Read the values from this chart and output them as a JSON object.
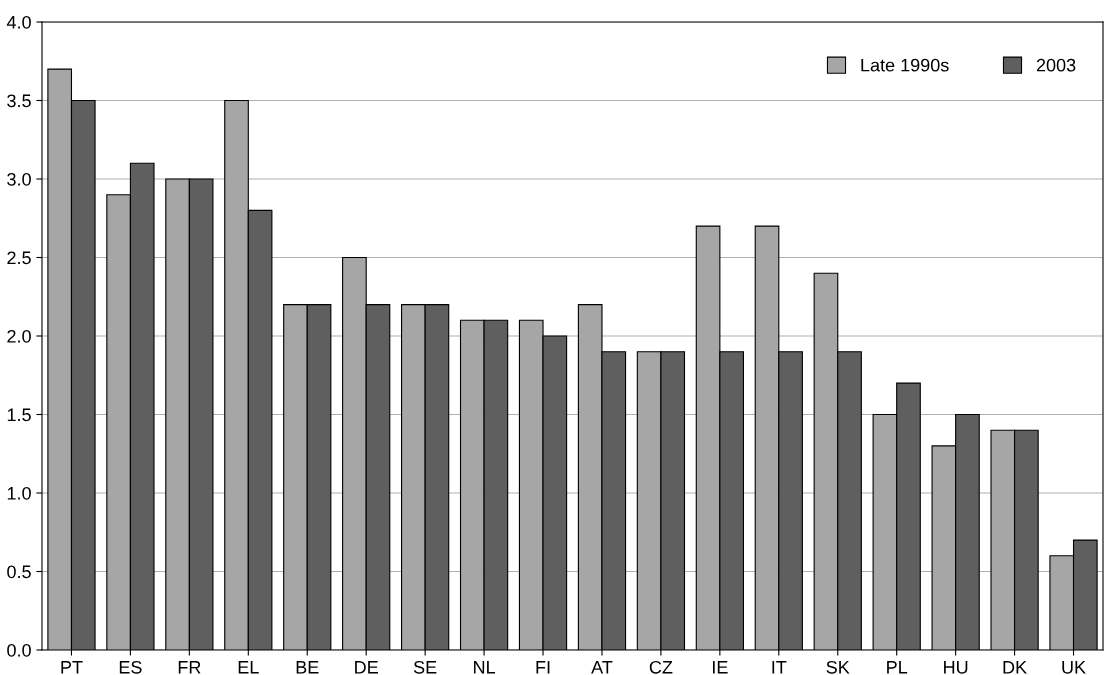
{
  "chart_data": {
    "type": "bar",
    "categories": [
      "PT",
      "ES",
      "FR",
      "EL",
      "BE",
      "DE",
      "SE",
      "NL",
      "FI",
      "AT",
      "CZ",
      "IE",
      "IT",
      "SK",
      "PL",
      "HU",
      "DK",
      "UK"
    ],
    "series": [
      {
        "name": "Late 1990s",
        "color": "#a6a6a6",
        "values": [
          3.7,
          2.9,
          3.0,
          3.5,
          2.2,
          2.5,
          2.2,
          2.1,
          2.1,
          2.2,
          1.9,
          2.7,
          2.7,
          2.4,
          1.5,
          1.3,
          1.4,
          0.6
        ]
      },
      {
        "name": "2003",
        "color": "#5f5f5f",
        "values": [
          3.5,
          3.1,
          3.0,
          2.8,
          2.2,
          2.2,
          2.2,
          2.1,
          2.0,
          1.9,
          1.9,
          1.9,
          1.9,
          1.9,
          1.7,
          1.5,
          1.4,
          0.7
        ]
      }
    ],
    "ylim": [
      0,
      4
    ],
    "yticks": [
      {
        "value": 0,
        "label": "0.0"
      },
      {
        "value": 0.5,
        "label": "0.5"
      },
      {
        "value": 1,
        "label": "1.0"
      },
      {
        "value": 1.5,
        "label": "1.5"
      },
      {
        "value": 2,
        "label": "2.0"
      },
      {
        "value": 2.5,
        "label": "2.5"
      },
      {
        "value": 3,
        "label": "3.0"
      },
      {
        "value": 3.5,
        "label": "3.5"
      },
      {
        "value": 4,
        "label": "4.0"
      }
    ],
    "grid": "y",
    "legend": "top right"
  }
}
